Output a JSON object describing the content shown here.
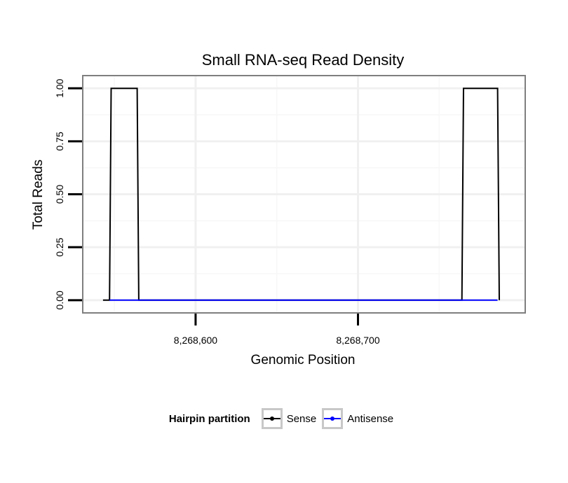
{
  "chart_data": {
    "type": "line",
    "title": "Small RNA-seq Read Density",
    "xlabel": "Genomic Position",
    "ylabel": "Total Reads",
    "xlim": [
      8268530.5,
      8268803
    ],
    "ylim": [
      -0.06,
      1.06
    ],
    "xticks": [
      {
        "value": 8268600,
        "label": "8,268,600"
      },
      {
        "value": 8268700,
        "label": "8,268,700"
      }
    ],
    "yticks": [
      {
        "value": 0,
        "label": "0.00"
      },
      {
        "value": 0.25,
        "label": "0.25"
      },
      {
        "value": 0.5,
        "label": "0.50"
      },
      {
        "value": 0.75,
        "label": "0.75"
      },
      {
        "value": 1,
        "label": "1.00"
      }
    ],
    "series": [
      {
        "name": "Sense",
        "color": "#000000",
        "points": [
          [
            8268543,
            0
          ],
          [
            8268547,
            0
          ],
          [
            8268548,
            1
          ],
          [
            8268564,
            1
          ],
          [
            8268565,
            0
          ],
          [
            8268764,
            0
          ],
          [
            8268765,
            1
          ],
          [
            8268786,
            1
          ],
          [
            8268787,
            0
          ]
        ]
      },
      {
        "name": "Antisense",
        "color": "#0000ff",
        "points": [
          [
            8268547,
            0
          ],
          [
            8268564,
            0
          ],
          [
            8268765,
            0
          ],
          [
            8268786,
            0
          ]
        ]
      }
    ],
    "legend": {
      "title": "Hairpin partition",
      "position": "bottom",
      "entries": [
        "Sense",
        "Antisense"
      ]
    }
  }
}
